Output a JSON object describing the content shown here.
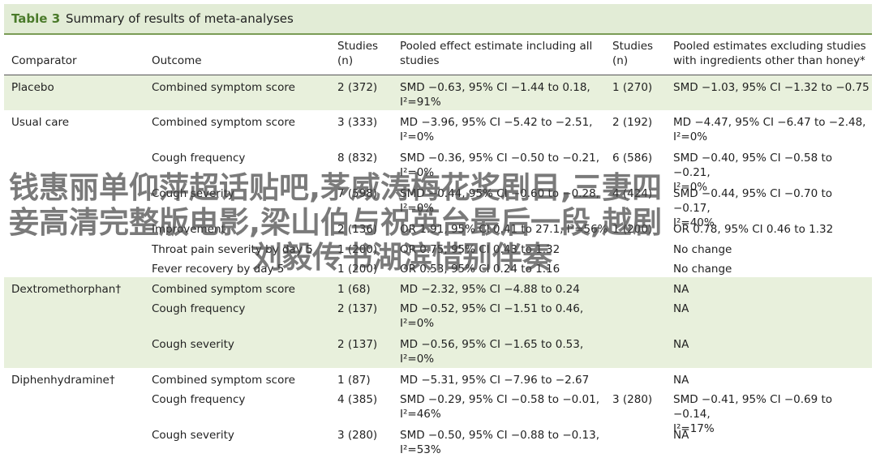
{
  "table": {
    "label": "Table 3",
    "title": "Summary of results of meta-analyses",
    "headers": {
      "comparator": "Comparator",
      "outcome": "Outcome",
      "studies1_a": "Studies",
      "studies1_b": "(n)",
      "pooled_all_a": "Pooled effect estimate including all",
      "pooled_all_b": "studies",
      "studies2_a": "Studies",
      "studies2_b": "(n)",
      "pooled_excl_a": "Pooled estimates excluding studies",
      "pooled_excl_b": "with ingredients other than honey*"
    },
    "rows": [
      {
        "comparator": "Placebo",
        "outcome": "Combined symptom score",
        "n1": "2 (372)",
        "est1_a": "SMD −0.63, 95% CI −1.44 to 0.18,",
        "est1_b": "I²=91%",
        "n2": "1 (270)",
        "est2_a": "SMD −1.03, 95% CI −1.32 to −0.75",
        "est2_b": ""
      },
      {
        "comparator": "Usual care",
        "outcome": "Combined symptom score",
        "n1": "3 (333)",
        "est1_a": "MD −3.96, 95% CI −5.42 to −2.51,",
        "est1_b": "I²=0%",
        "n2": "2 (192)",
        "est2_a": "MD −4.47, 95% CI −6.47 to −2.48,",
        "est2_b": "I²=0%"
      },
      {
        "comparator": "",
        "outcome": "Cough frequency",
        "n1": "8 (832)",
        "est1_a": "SMD −0.36, 95% CI −0.50 to −0.21,",
        "est1_b": "I²=0%",
        "n2": "6 (586)",
        "est2_a": "SMD −0.40, 95% CI −0.58 to −0.21,",
        "est2_b": "I²=0%"
      },
      {
        "comparator": "",
        "outcome": "Cough severity",
        "n1": "7 (598)",
        "est1_a": "SMD −0.44, 95% CI −0.60 to −0.28,",
        "est1_b": "I²=0%",
        "n2": "4 (424)",
        "est2_a": "SMD −0.44, 95% CI −0.70 to −0.17,",
        "est2_b": "I²=40%"
      },
      {
        "comparator": "",
        "outcome": "Improvement",
        "n1": "2 (136)",
        "est1_a": "OR 1.91, 95% CI 0.41 to 27.1, I²=56%",
        "est1_b": "",
        "n2": "1 (200)",
        "est2_a": "OR 0.78, 95% CI 0.46 to 1.32",
        "est2_b": ""
      },
      {
        "comparator": "",
        "outcome": "Throat pain severity by day 5",
        "n1": "1 (200)",
        "est1_a": "OR 0.75, 95% CI 0.43 to 1.32",
        "est1_b": "",
        "n2": "",
        "est2_a": "No change",
        "est2_b": ""
      },
      {
        "comparator": "",
        "outcome": "Fever recovery by day 5",
        "n1": "1 (200)",
        "est1_a": "OR 0.53, 95% CI 0.24 to 1.16",
        "est1_b": "",
        "n2": "",
        "est2_a": "No change",
        "est2_b": ""
      },
      {
        "comparator": "Dextromethorphan†",
        "outcome": "Combined symptom score",
        "n1": "1 (68)",
        "est1_a": "MD −2.32, 95% CI −4.88 to 0.24",
        "est1_b": "",
        "n2": "",
        "est2_a": "NA",
        "est2_b": ""
      },
      {
        "comparator": "",
        "outcome": "Cough frequency",
        "n1": "2 (137)",
        "est1_a": "MD −0.52, 95% CI −1.51 to 0.46,",
        "est1_b": "I²=0%",
        "n2": "",
        "est2_a": "NA",
        "est2_b": ""
      },
      {
        "comparator": "",
        "outcome": "Cough severity",
        "n1": "2 (137)",
        "est1_a": "MD −0.56, 95% CI −1.65 to 0.53,",
        "est1_b": "I²=0%",
        "n2": "",
        "est2_a": "NA",
        "est2_b": ""
      },
      {
        "comparator": "Diphenhydramine†",
        "outcome": "Combined symptom score",
        "n1": "1 (87)",
        "est1_a": "MD −5.31, 95% CI −7.96 to −2.67",
        "est1_b": "",
        "n2": "",
        "est2_a": "NA",
        "est2_b": ""
      },
      {
        "comparator": "",
        "outcome": "Cough frequency",
        "n1": "4 (385)",
        "est1_a": "SMD −0.29, 95% CI −0.58 to −0.01,",
        "est1_b": "I²=46%",
        "n2": "3 (280)",
        "est2_a": "SMD −0.41, 95% CI −0.69 to −0.14,",
        "est2_b": "I²=17%"
      },
      {
        "comparator": "",
        "outcome": "Cough severity",
        "n1": "3 (280)",
        "est1_a": "SMD −0.50, 95% CI −0.88 to −0.13,",
        "est1_b": "I²=53%",
        "n2": "",
        "est2_a": "NA",
        "est2_b": ""
      }
    ]
  },
  "watermark": {
    "line1": "钱惠丽单仰萍超话贴吧,茅威涛梅花奖剧目,三妻四",
    "line2": "妾高清完整版电影,梁山伯与祝英台最后一段,越剧",
    "line3": "刘毅传书湖滨惜别伴奏"
  },
  "colors": {
    "title_bg": "#e2ecd6",
    "title_label": "#4a7a2a",
    "row_shade": "#e8f0dc"
  }
}
